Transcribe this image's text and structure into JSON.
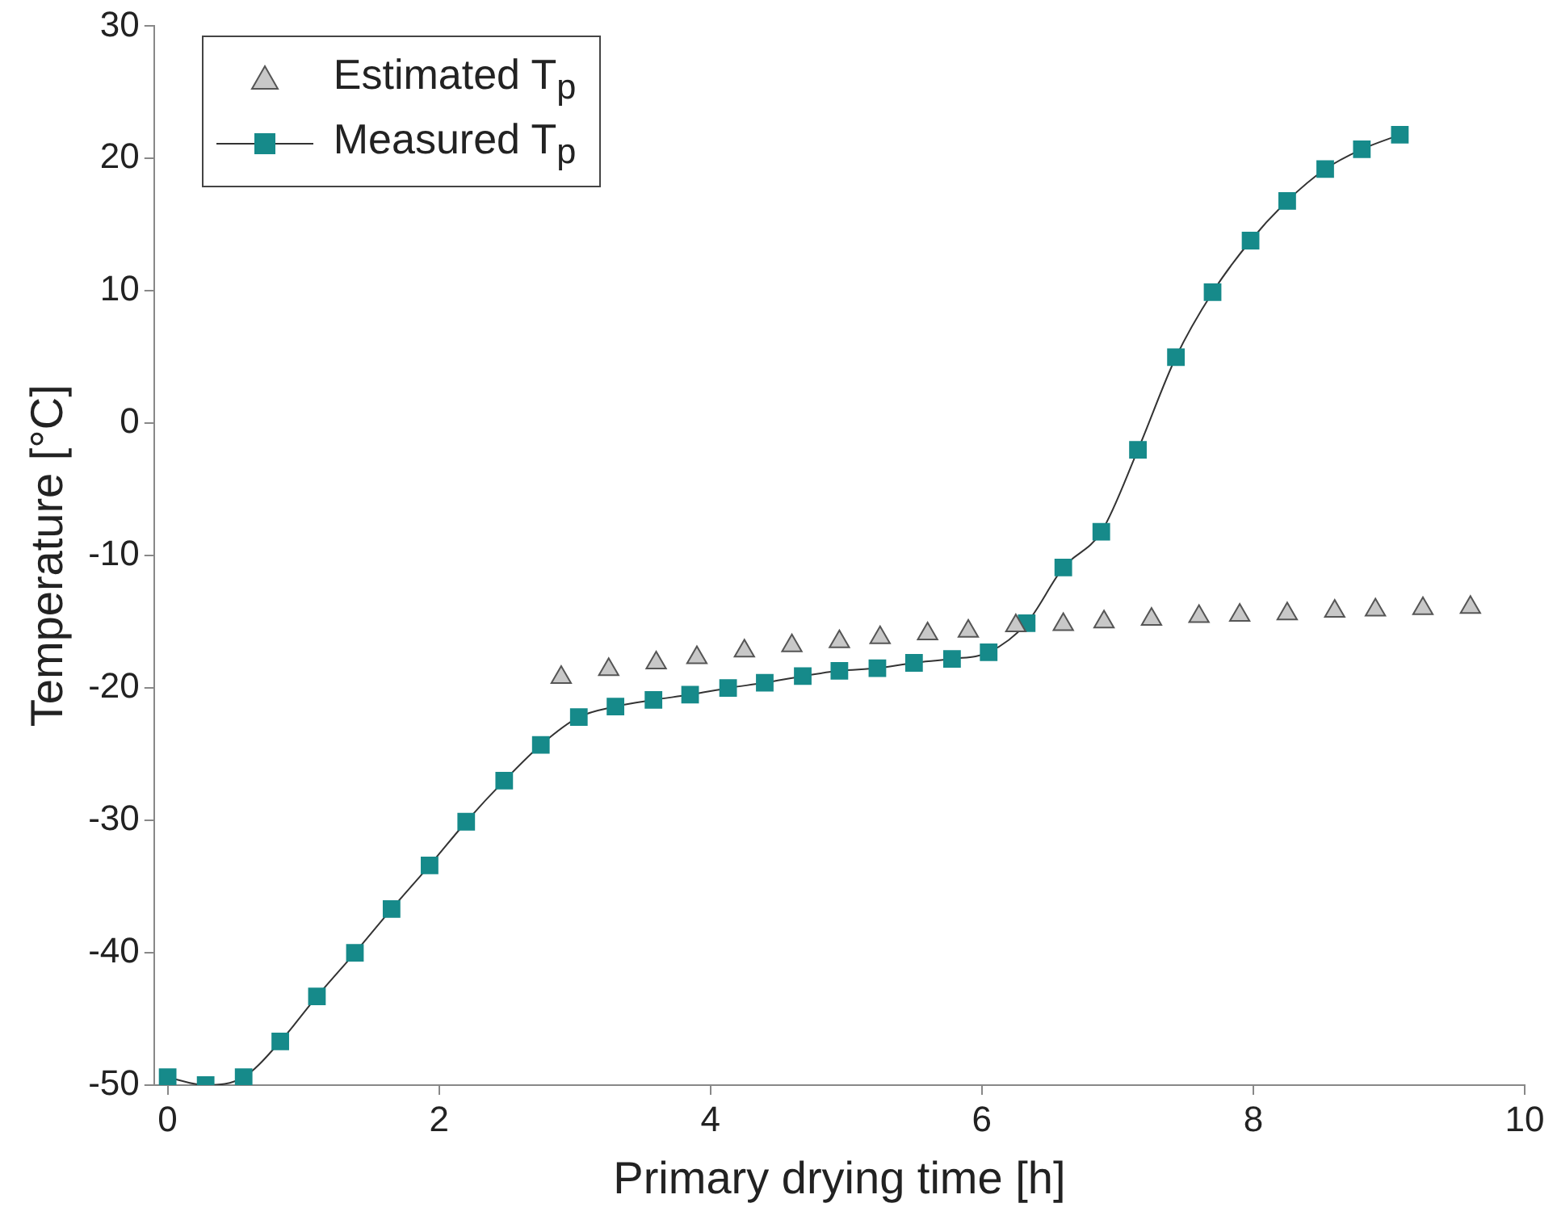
{
  "chart_data": {
    "type": "line",
    "xlabel": "Primary drying time [h]",
    "ylabel": "Temperature [°C]",
    "xlim": [
      -0.1,
      10
    ],
    "xticks": [
      0,
      2,
      4,
      6,
      8,
      10
    ],
    "ylim": [
      -50,
      30
    ],
    "yticks": [
      -50,
      -40,
      -30,
      -20,
      -10,
      0,
      10,
      20,
      30
    ],
    "grid": false,
    "legend": "top left",
    "series": [
      {
        "name": "Estimated T$_{p}$",
        "type": "scatter",
        "marker": "triangle",
        "color": "#c8c8c8",
        "x": [
          2.9,
          3.25,
          3.6,
          3.9,
          4.25,
          4.6,
          4.95,
          5.25,
          5.6,
          5.9,
          6.25,
          6.6,
          6.9,
          7.25,
          7.6,
          7.9,
          8.25,
          8.6,
          8.9,
          9.25,
          9.6
        ],
        "values": [
          -19.2,
          -18.6,
          -18.1,
          -17.7,
          -17.2,
          -16.8,
          -16.5,
          -16.2,
          -15.9,
          -15.7,
          -15.3,
          -15.2,
          -15.0,
          -14.8,
          -14.6,
          -14.5,
          -14.4,
          -14.2,
          -14.1,
          -14.0,
          -13.9
        ]
      },
      {
        "name": "Measured T$_{p}$",
        "marker": "square",
        "color": "#168a8a",
        "x": [
          0,
          0.28,
          0.56,
          0.83,
          1.1,
          1.38,
          1.65,
          1.93,
          2.2,
          2.48,
          2.75,
          3.03,
          3.3,
          3.58,
          3.85,
          4.13,
          4.4,
          4.68,
          4.95,
          5.23,
          5.5,
          5.78,
          6.05,
          6.33,
          6.6,
          6.88,
          7.15,
          7.43,
          7.7,
          7.98,
          8.25,
          8.53,
          8.8,
          9.08
        ],
        "values": [
          -49.4,
          -50,
          -49.4,
          -46.7,
          -43.3,
          -40,
          -36.7,
          -33.4,
          -30.1,
          -27,
          -24.3,
          -22.2,
          -21.4,
          -20.9,
          -20.5,
          -20,
          -19.6,
          -19.1,
          -18.7,
          -18.5,
          -18.1,
          -17.8,
          -17.3,
          -15.1,
          -10.9,
          -8.2,
          -2,
          5,
          9.9,
          13.8,
          16.8,
          19.2,
          20.7,
          21.8
        ]
      }
    ]
  }
}
